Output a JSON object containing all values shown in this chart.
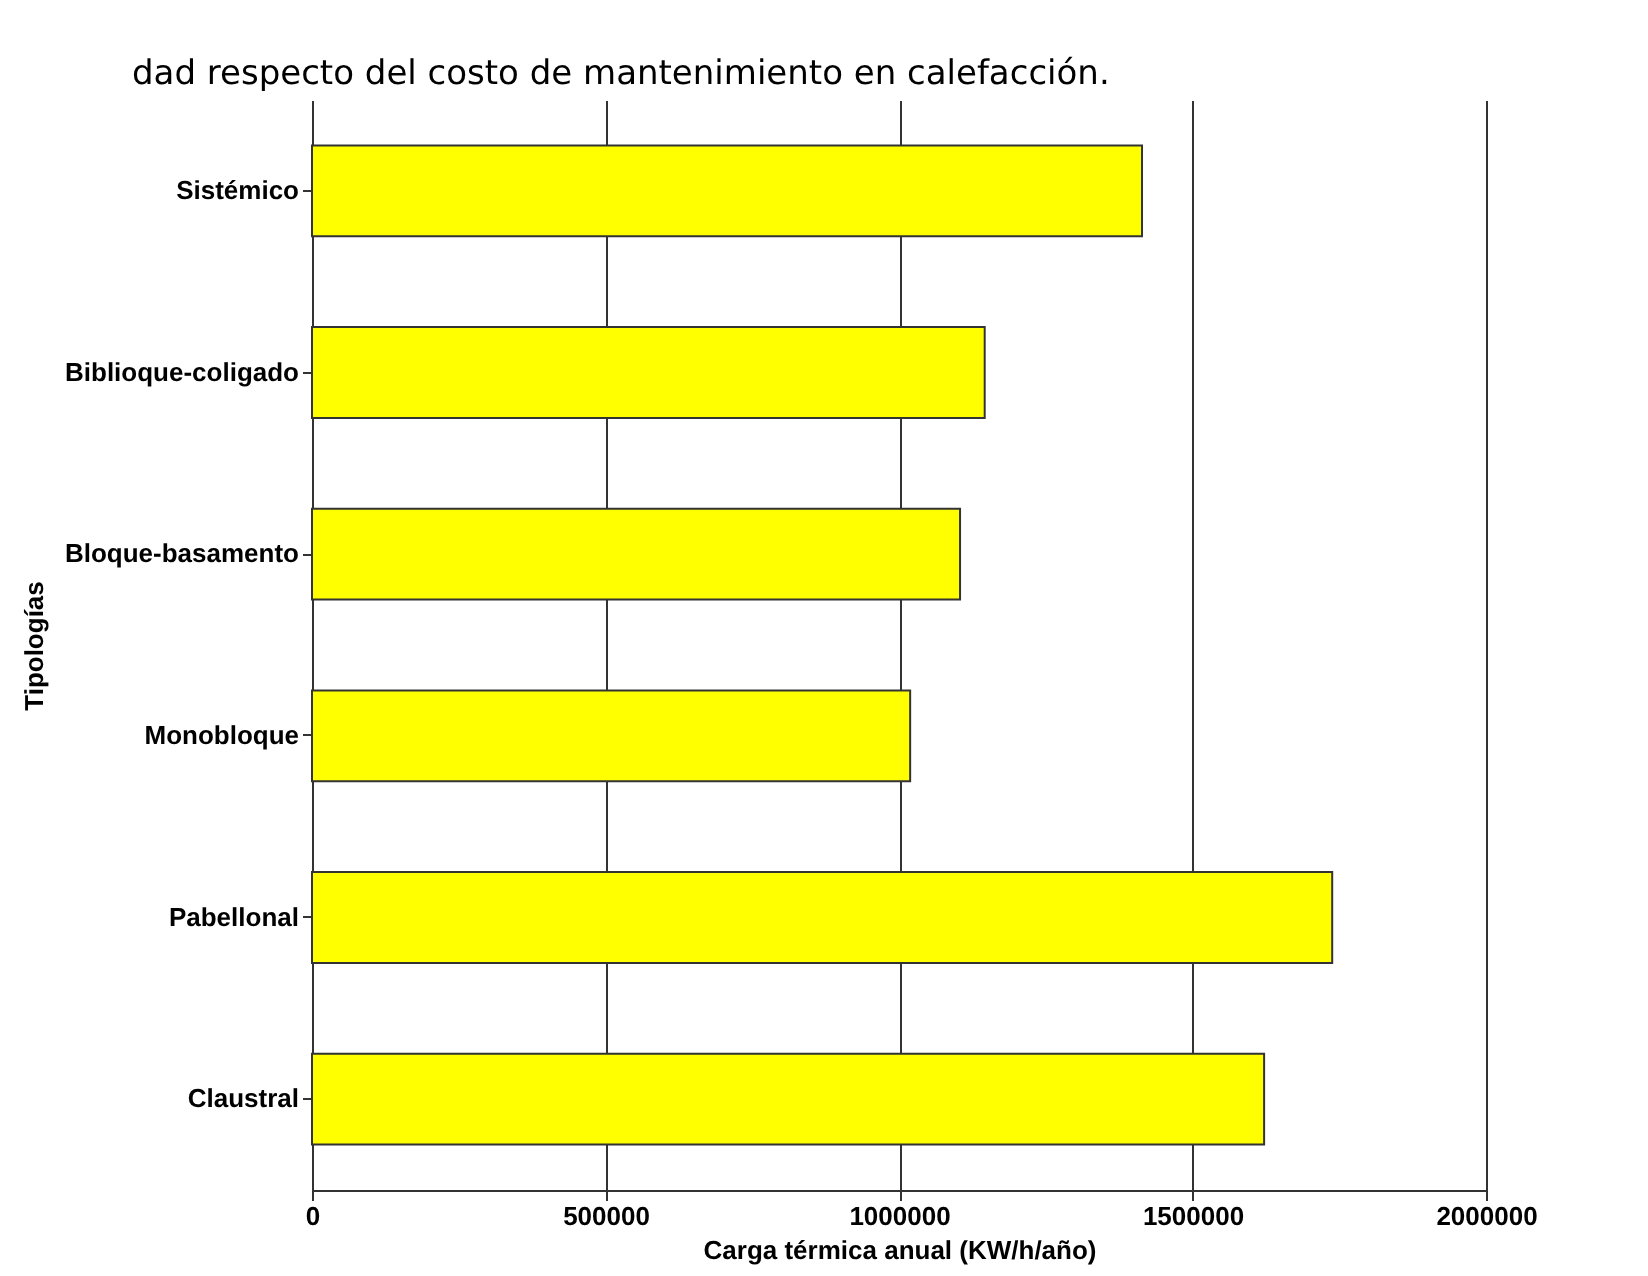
{
  "chart_data": {
    "type": "bar",
    "orientation": "horizontal",
    "categories": [
      "Sistémico",
      "Biblioque-coligado",
      "Bloque-basamento",
      "Monobloque",
      "Pabellonal",
      "Claustral"
    ],
    "values": [
      1414000,
      1146000,
      1104000,
      1019000,
      1738000,
      1622000
    ],
    "color": "#ffff00",
    "xlim": [
      0,
      2000000
    ],
    "xticks": [
      0,
      500000,
      1000000,
      1500000,
      2000000
    ],
    "xlabel": "Carga térmica anual (KW/h/año)",
    "ylabel": "Tipologías",
    "grid": "x",
    "annotations": [
      "dad respecto del costo de mantenimiento en calefacción."
    ]
  }
}
